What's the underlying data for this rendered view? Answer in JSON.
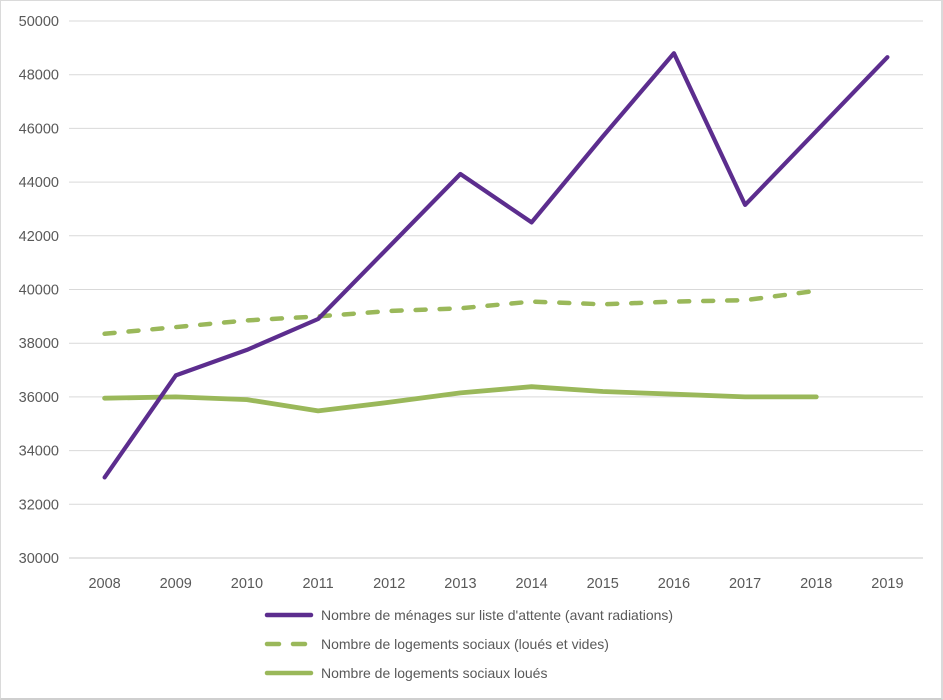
{
  "chart_data": {
    "type": "line",
    "title": "",
    "categories": [
      "2008",
      "2009",
      "2010",
      "2011",
      "2012",
      "2013",
      "2014",
      "2015",
      "2016",
      "2017",
      "2018",
      "2019"
    ],
    "series": [
      {
        "name": "Nombre de ménages sur liste d'attente (avant radiations)",
        "line_style": "solid",
        "color": "#5C2D8E",
        "stroke_width": 4.2,
        "values": [
          33000,
          36800,
          37750,
          38900,
          41600,
          44300,
          42500,
          45700,
          48800,
          43150,
          45900,
          48650
        ]
      },
      {
        "name": "Nombre de logements sociaux (loués et vides)",
        "line_style": "dashed",
        "color": "#9AB85A",
        "stroke_width": 4.5,
        "values": [
          38350,
          38600,
          38850,
          39000,
          39200,
          39300,
          39550,
          39450,
          39550,
          39600,
          39950,
          null
        ]
      },
      {
        "name": "Nombre de logements sociaux loués",
        "line_style": "solid",
        "color": "#9AB85A",
        "stroke_width": 4.8,
        "values": [
          35950,
          36000,
          35900,
          35480,
          35800,
          36150,
          36380,
          36200,
          36100,
          36000,
          36000,
          null
        ]
      }
    ],
    "ylim": [
      30000,
      50000
    ],
    "ytick_step": 2000,
    "ytick_labels": [
      "30000",
      "32000",
      "34000",
      "36000",
      "38000",
      "40000",
      "42000",
      "44000",
      "46000",
      "48000",
      "50000"
    ],
    "grid": true,
    "legend_position": "bottom-left",
    "colors": {
      "axis_text": "#595959",
      "gridline": "#D9D9D9",
      "axis_line": "#CBCBCB",
      "background": "#FFFFFF"
    }
  }
}
